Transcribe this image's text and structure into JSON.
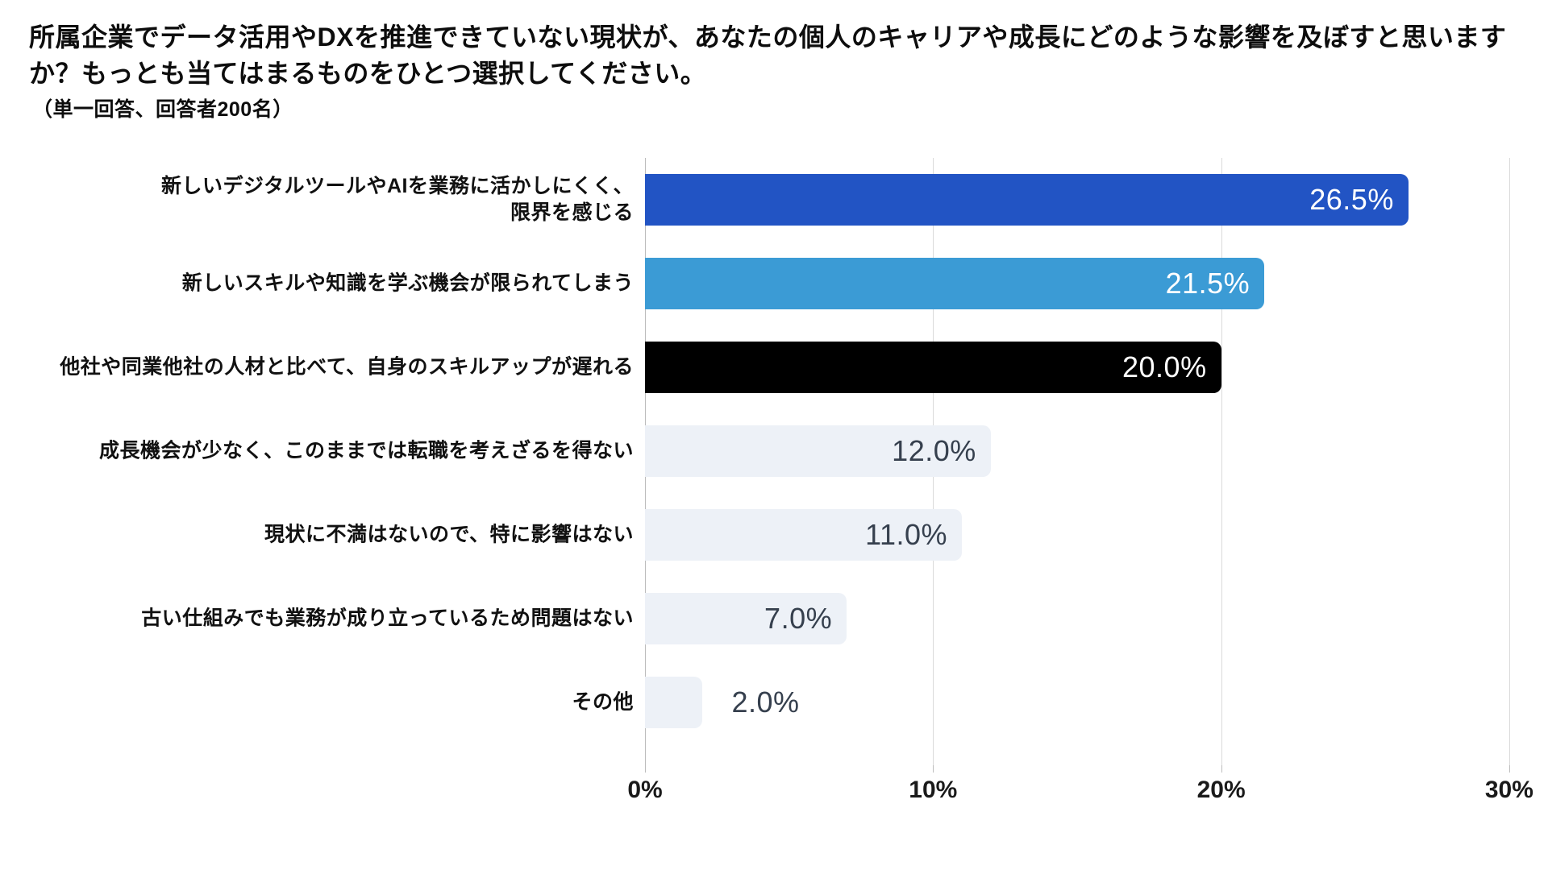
{
  "title": "所属企業でデータ活用やDXを推進できていない現状が、あなたの個人のキャリアや成長にどのような影響を及ぼすと思います\nか？もっとも当てはまるものをひとつ選択してください。",
  "subtitle": "（単一回答、回答者200名）",
  "chart_data": {
    "type": "bar",
    "orientation": "horizontal",
    "title": "所属企業でデータ活用やDXを推進できていない現状が、あなたの個人のキャリアや成長にどのような影響を及ぼすと思いますか？もっとも当てはまるものをひとつ選択してください。",
    "subtitle": "（単一回答、回答者200名）",
    "categories": [
      "新しいデジタルツールやAIを業務に活かしにくく、\n限界を感じる",
      "新しいスキルや知識を学ぶ機会が限られてしまう",
      "他社や同業他社の人材と比べて、自身のスキルアップが遅れる",
      "成長機会が少なく、このままでは転職を考えざるを得ない",
      "現状に不満はないので、特に影響はない",
      "古い仕組みでも業務が成り立っているため問題はない",
      "その他"
    ],
    "values": [
      26.5,
      21.5,
      20.0,
      12.0,
      11.0,
      7.0,
      2.0
    ],
    "value_labels": [
      "26.5%",
      "21.5%",
      "20.0%",
      "12.0%",
      "11.0%",
      "7.0%",
      "2.0%"
    ],
    "bar_colors": [
      "#2254C4",
      "#3B9BD5",
      "#000000",
      "#EDF1F7",
      "#EDF1F7",
      "#EDF1F7",
      "#EDF1F7"
    ],
    "value_label_colors": [
      "#FFFFFF",
      "#FFFFFF",
      "#FFFFFF",
      "#36404E",
      "#36404E",
      "#36404E",
      "#36404E"
    ],
    "value_label_inside": [
      true,
      true,
      true,
      true,
      true,
      true,
      false
    ],
    "xlabel": "",
    "ylabel": "",
    "xlim": [
      0,
      30
    ],
    "x_ticks": [
      {
        "value": 0,
        "label": "0%"
      },
      {
        "value": 10,
        "label": "10%"
      },
      {
        "value": 20,
        "label": "20%"
      },
      {
        "value": 30,
        "label": "30%"
      }
    ],
    "grid": "vertical",
    "legend": "none"
  }
}
